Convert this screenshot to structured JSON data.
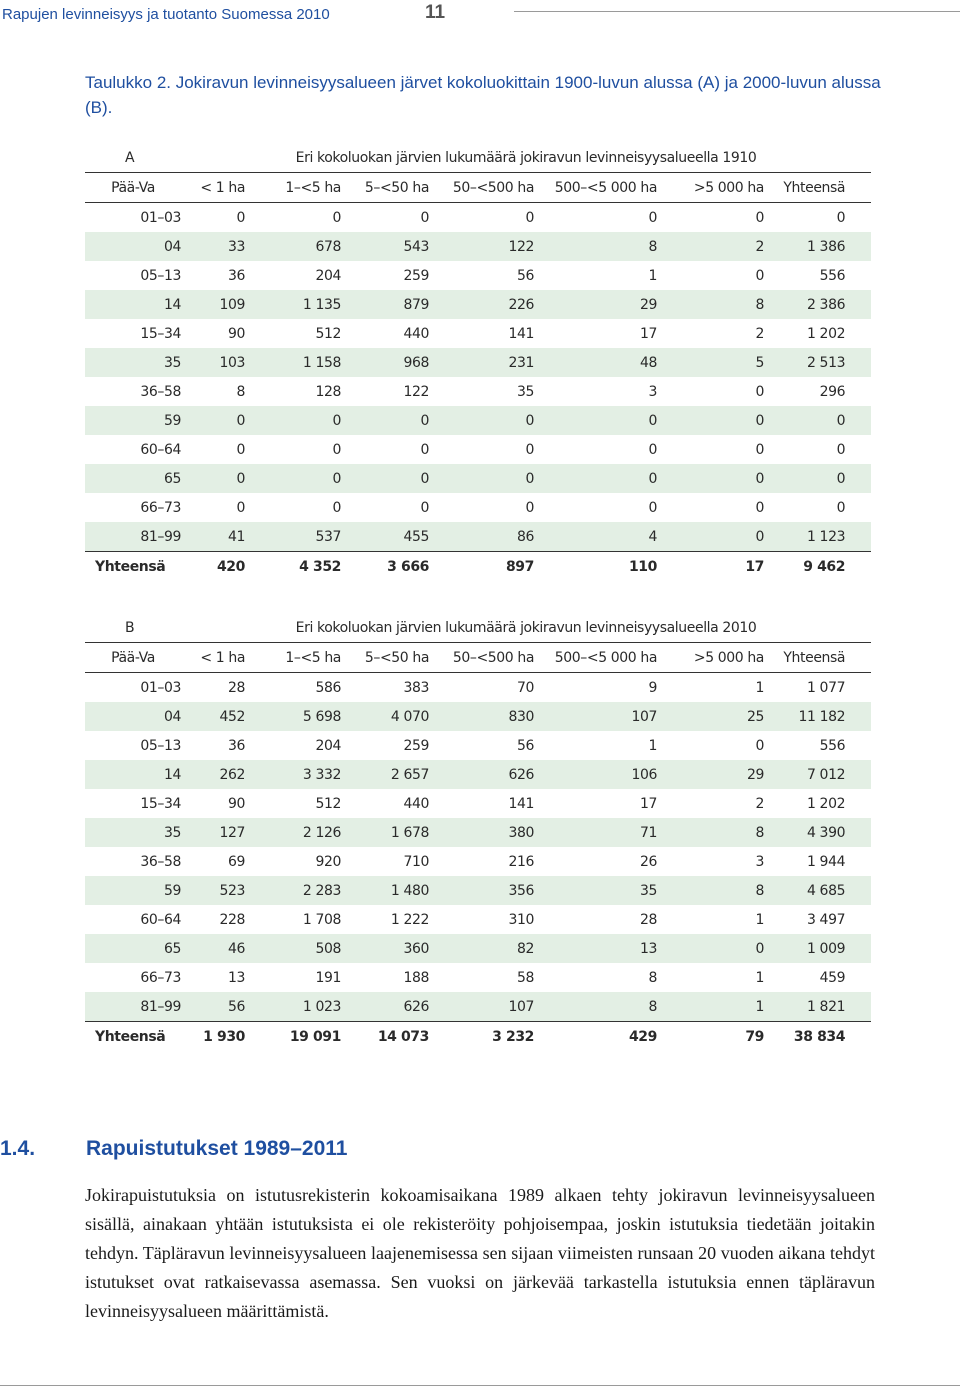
{
  "running_head": {
    "title": "Rapujen levinneisyys ja tuotanto Suomessa 2010",
    "page": "11"
  },
  "caption": "Taulukko 2. Jokiravun levinneisyysalueen järvet kokoluokittain 1900-luvun alussa (A) ja 2000-luvun alussa (B).",
  "columns": [
    "Pää-Va",
    "< 1 ha",
    "1–<5 ha",
    "5–<50 ha",
    "50–<500 ha",
    "500–<5 000 ha",
    ">5 000 ha",
    "Yhteensä"
  ],
  "table_a": {
    "label": "A",
    "title": "Eri kokoluokan järvien lukumäärä jokiravun levinneisyysalueella 1910",
    "rows": [
      [
        "01–03",
        "0",
        "0",
        "0",
        "0",
        "0",
        "0",
        "0"
      ],
      [
        "04",
        "33",
        "678",
        "543",
        "122",
        "8",
        "2",
        "1 386"
      ],
      [
        "05–13",
        "36",
        "204",
        "259",
        "56",
        "1",
        "0",
        "556"
      ],
      [
        "14",
        "109",
        "1 135",
        "879",
        "226",
        "29",
        "8",
        "2 386"
      ],
      [
        "15–34",
        "90",
        "512",
        "440",
        "141",
        "17",
        "2",
        "1 202"
      ],
      [
        "35",
        "103",
        "1 158",
        "968",
        "231",
        "48",
        "5",
        "2 513"
      ],
      [
        "36–58",
        "8",
        "128",
        "122",
        "35",
        "3",
        "0",
        "296"
      ],
      [
        "59",
        "0",
        "0",
        "0",
        "0",
        "0",
        "0",
        "0"
      ],
      [
        "60–64",
        "0",
        "0",
        "0",
        "0",
        "0",
        "0",
        "0"
      ],
      [
        "65",
        "0",
        "0",
        "0",
        "0",
        "0",
        "0",
        "0"
      ],
      [
        "66–73",
        "0",
        "0",
        "0",
        "0",
        "0",
        "0",
        "0"
      ],
      [
        "81–99",
        "41",
        "537",
        "455",
        "86",
        "4",
        "0",
        "1 123"
      ]
    ],
    "total": [
      "Yhteensä",
      "420",
      "4 352",
      "3 666",
      "897",
      "110",
      "17",
      "9 462"
    ]
  },
  "table_b": {
    "label": "B",
    "title": "Eri kokoluokan järvien lukumäärä jokiravun levinneisyysalueella 2010",
    "rows": [
      [
        "01–03",
        "28",
        "586",
        "383",
        "70",
        "9",
        "1",
        "1 077"
      ],
      [
        "04",
        "452",
        "5 698",
        "4 070",
        "830",
        "107",
        "25",
        "11 182"
      ],
      [
        "05–13",
        "36",
        "204",
        "259",
        "56",
        "1",
        "0",
        "556"
      ],
      [
        "14",
        "262",
        "3 332",
        "2 657",
        "626",
        "106",
        "29",
        "7 012"
      ],
      [
        "15–34",
        "90",
        "512",
        "440",
        "141",
        "17",
        "2",
        "1 202"
      ],
      [
        "35",
        "127",
        "2 126",
        "1 678",
        "380",
        "71",
        "8",
        "4 390"
      ],
      [
        "36–58",
        "69",
        "920",
        "710",
        "216",
        "26",
        "3",
        "1 944"
      ],
      [
        "59",
        "523",
        "2 283",
        "1 480",
        "356",
        "35",
        "8",
        "4 685"
      ],
      [
        "60–64",
        "228",
        "1 708",
        "1 222",
        "310",
        "28",
        "1",
        "3 497"
      ],
      [
        "65",
        "46",
        "508",
        "360",
        "82",
        "13",
        "0",
        "1 009"
      ],
      [
        "66–73",
        "13",
        "191",
        "188",
        "58",
        "8",
        "1",
        "459"
      ],
      [
        "81–99",
        "56",
        "1 023",
        "626",
        "107",
        "8",
        "1",
        "1 821"
      ]
    ],
    "total": [
      "Yhteensä",
      "1 930",
      "19 091",
      "14 073",
      "3 232",
      "429",
      "79",
      "38 834"
    ]
  },
  "section": {
    "number": "1.4.",
    "title": "Rapuistutukset 1989–2011"
  },
  "paragraph": "Jokirapuistutuksia on istutusrekisterin kokoamisaikana 1989 alkaen tehty jokiravun levinneisyysalueen sisällä, ainakaan yhtään istutuksista ei ole rekisteröity pohjoisempaa, joskin istutuksia tiedetään joitakin tehdyn. Täpläravun levinneisyysalueen laajenemisessa sen sijaan viimeisten runsaan 20 vuoden aikana tehdyt istutukset ovat ratkaisevassa asemassa. Sen vuoksi on järkevää tarkastella istutuksia ennen täpläravun levinneisyysalueen määrittämistä.",
  "colors": {
    "accent": "#1f4fa0",
    "row_shade": "#e3efe4"
  }
}
